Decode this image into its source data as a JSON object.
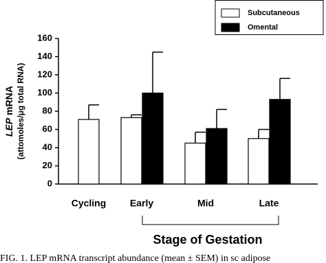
{
  "chart_data": {
    "type": "bar",
    "y_label": [
      "LEP",
      "mRNA"
    ],
    "y_label_units": "(attomoles/μg total RNA)",
    "x_label": "Stage of Gestation",
    "categories": [
      "Cycling",
      "Early",
      "Mid",
      "Late"
    ],
    "series": [
      {
        "name": "Subcutaneous",
        "color": "#ffffff",
        "values": [
          71,
          73,
          45,
          50
        ],
        "errors": [
          16,
          3,
          12,
          10
        ]
      },
      {
        "name": "Omental",
        "color": "#000000",
        "values": [
          null,
          100,
          61,
          93
        ],
        "errors": [
          null,
          45,
          21,
          23
        ]
      }
    ],
    "ylim": [
      0,
      160
    ],
    "yticks": [
      0,
      20,
      40,
      60,
      80,
      100,
      120,
      140,
      160
    ],
    "caption": "FIG. 1. LEP mRNA transcript abundance (mean ± SEM) in sc adipose"
  }
}
